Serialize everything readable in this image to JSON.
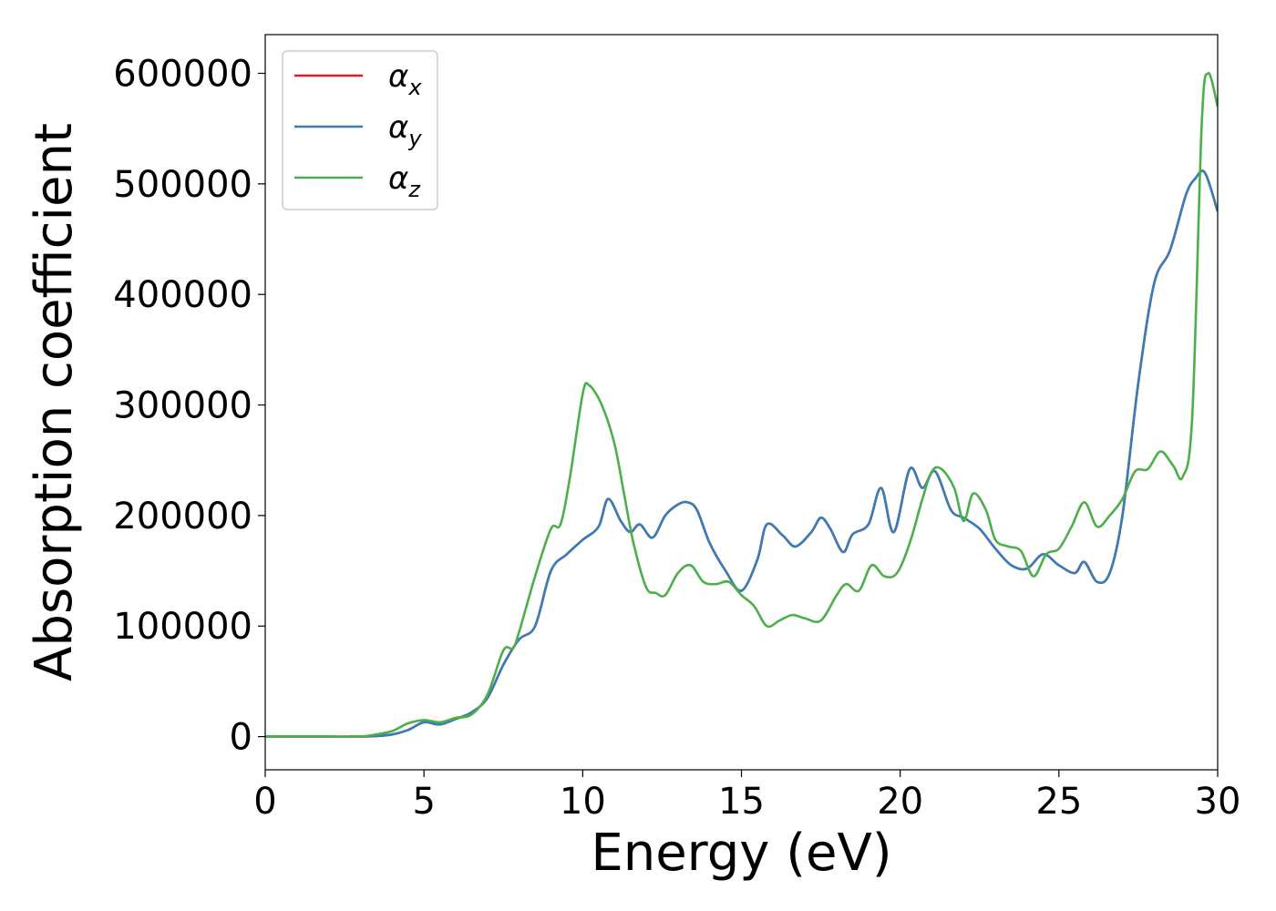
{
  "chart_data": {
    "type": "line",
    "xlabel": "Energy (eV)",
    "ylabel": "Absorption coefficient",
    "xlim": [
      0,
      30
    ],
    "ylim": [
      -30000,
      635000
    ],
    "xticks": [
      "0",
      "5",
      "10",
      "15",
      "20",
      "25",
      "30"
    ],
    "yticks": [
      "0",
      "100000",
      "200000",
      "300000",
      "400000",
      "500000",
      "600000"
    ],
    "grid": false,
    "legend_position": "top-left",
    "series": [
      {
        "name": "α_x",
        "legend_main": "α",
        "legend_sub": "x",
        "color": "#e41a1c",
        "x": [
          0,
          1,
          2,
          3,
          3.5,
          4,
          4.5,
          5,
          5.5,
          6,
          6.5,
          7,
          7.5,
          8,
          8.5,
          9,
          9.5,
          10,
          10.5,
          10.8,
          11.2,
          11.5,
          11.8,
          12.2,
          12.6,
          13,
          13.3,
          13.6,
          14,
          14.5,
          15,
          15.5,
          15.8,
          16.3,
          16.7,
          17.2,
          17.5,
          17.8,
          18.2,
          18.5,
          19,
          19.4,
          19.8,
          20.3,
          20.7,
          21.1,
          21.6,
          22,
          22.5,
          23,
          23.5,
          24,
          24.5,
          25,
          25.5,
          25.8,
          26.2,
          26.6,
          27,
          27.5,
          28,
          28.5,
          29,
          29.3,
          29.6,
          30
        ],
        "values": [
          0,
          0,
          0,
          0,
          500,
          2000,
          6000,
          13000,
          11000,
          16000,
          22000,
          35000,
          65000,
          88000,
          100000,
          150000,
          165000,
          178000,
          190000,
          215000,
          195000,
          185000,
          192000,
          180000,
          200000,
          210000,
          212000,
          205000,
          175000,
          150000,
          132000,
          160000,
          192000,
          182000,
          172000,
          185000,
          198000,
          188000,
          167000,
          183000,
          192000,
          225000,
          185000,
          242000,
          225000,
          240000,
          205000,
          198000,
          188000,
          170000,
          155000,
          152000,
          165000,
          155000,
          148000,
          158000,
          140000,
          148000,
          200000,
          320000,
          410000,
          440000,
          490000,
          505000,
          510000,
          475000
        ]
      },
      {
        "name": "α_y",
        "legend_main": "α",
        "legend_sub": "y",
        "color": "#377eb8",
        "x": [
          0,
          1,
          2,
          3,
          3.5,
          4,
          4.5,
          5,
          5.5,
          6,
          6.5,
          7,
          7.5,
          8,
          8.5,
          9,
          9.5,
          10,
          10.5,
          10.8,
          11.2,
          11.5,
          11.8,
          12.2,
          12.6,
          13,
          13.3,
          13.6,
          14,
          14.5,
          15,
          15.5,
          15.8,
          16.3,
          16.7,
          17.2,
          17.5,
          17.8,
          18.2,
          18.5,
          19,
          19.4,
          19.8,
          20.3,
          20.7,
          21.1,
          21.6,
          22,
          22.5,
          23,
          23.5,
          24,
          24.5,
          25,
          25.5,
          25.8,
          26.2,
          26.6,
          27,
          27.5,
          28,
          28.5,
          29,
          29.3,
          29.6,
          30
        ],
        "values": [
          0,
          0,
          0,
          0,
          500,
          2000,
          6000,
          13000,
          11000,
          16000,
          22000,
          35000,
          65000,
          88000,
          100000,
          150000,
          165000,
          178000,
          190000,
          215000,
          195000,
          185000,
          192000,
          180000,
          200000,
          210000,
          212000,
          205000,
          175000,
          150000,
          132000,
          160000,
          192000,
          182000,
          172000,
          185000,
          198000,
          188000,
          167000,
          183000,
          192000,
          225000,
          185000,
          242000,
          225000,
          240000,
          205000,
          198000,
          188000,
          170000,
          155000,
          152000,
          165000,
          155000,
          148000,
          158000,
          140000,
          148000,
          200000,
          320000,
          410000,
          440000,
          490000,
          505000,
          510000,
          475000
        ]
      },
      {
        "name": "α_z",
        "legend_main": "α",
        "legend_sub": "z",
        "color": "#4daf4a",
        "x": [
          0,
          1,
          2,
          3,
          3.5,
          4,
          4.5,
          5,
          5.5,
          6,
          6.5,
          7,
          7.5,
          7.8,
          8,
          8.5,
          9,
          9.3,
          9.6,
          10,
          10.2,
          10.6,
          11,
          11.3,
          11.6,
          12,
          12.3,
          12.6,
          13,
          13.4,
          13.8,
          14.2,
          14.6,
          15,
          15.4,
          15.8,
          16.2,
          16.6,
          17,
          17.5,
          18,
          18.3,
          18.7,
          19.1,
          19.5,
          19.9,
          20.3,
          20.7,
          21,
          21.3,
          21.7,
          22,
          22.3,
          22.7,
          23,
          23.4,
          23.8,
          24.2,
          24.6,
          25,
          25.4,
          25.8,
          26.2,
          26.6,
          27,
          27.4,
          27.8,
          28.2,
          28.6,
          28.9,
          29.2,
          29.5,
          29.7,
          30
        ],
        "values": [
          0,
          0,
          0,
          0,
          2000,
          5000,
          12000,
          15000,
          13000,
          17000,
          20000,
          38000,
          78000,
          80000,
          95000,
          145000,
          188000,
          192000,
          235000,
          310000,
          318000,
          300000,
          265000,
          220000,
          175000,
          135000,
          130000,
          128000,
          148000,
          155000,
          140000,
          138000,
          140000,
          128000,
          118000,
          100000,
          105000,
          110000,
          107000,
          105000,
          128000,
          138000,
          132000,
          155000,
          145000,
          148000,
          175000,
          215000,
          240000,
          242000,
          225000,
          195000,
          220000,
          205000,
          178000,
          172000,
          168000,
          145000,
          165000,
          170000,
          190000,
          212000,
          190000,
          200000,
          215000,
          240000,
          242000,
          258000,
          245000,
          235000,
          290000,
          555000,
          600000,
          570000
        ]
      }
    ]
  }
}
